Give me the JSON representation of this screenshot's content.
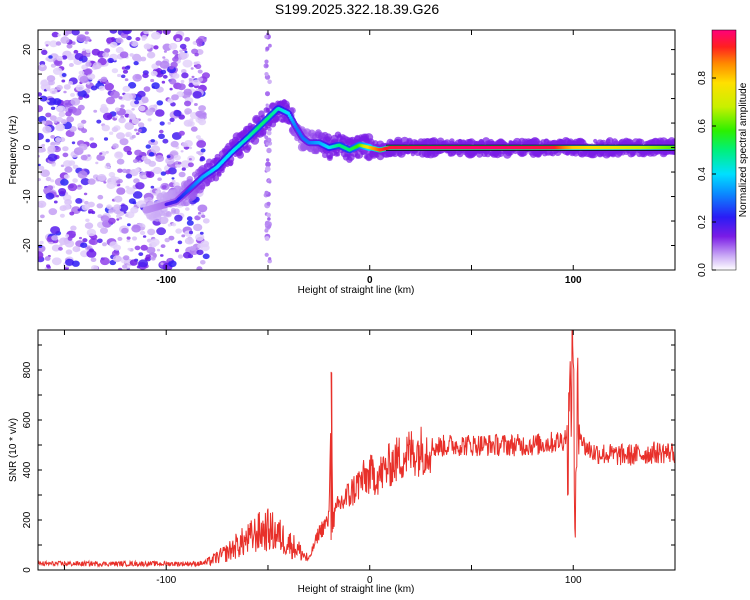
{
  "chart_data": [
    {
      "type": "heatmap",
      "title": "S199.2025.322.18.39.G26",
      "xlabel": "Height of straight line (km)",
      "ylabel": "Frequency (Hz)",
      "xlim": [
        -163,
        150
      ],
      "ylim": [
        -25,
        24
      ],
      "xticks": [
        "-100",
        "0",
        "100"
      ],
      "yticks": [
        "20",
        "10",
        "0",
        "-10",
        "-20"
      ],
      "colorbar": {
        "label": "Normalized spectral amplitude",
        "ticks": [
          "0.0",
          "0.2",
          "0.4",
          "0.6",
          "0.8"
        ],
        "range": [
          0,
          1
        ]
      },
      "noise_region": {
        "x_start": -163,
        "x_end": -80
      },
      "ridge": {
        "x": [
          -163,
          -120,
          -95,
          -82,
          -75,
          -68,
          -60,
          -55,
          -50,
          -45,
          -40,
          -36,
          -33,
          -30,
          -25,
          -20,
          -15,
          -10,
          -5,
          0,
          5,
          10,
          30,
          60,
          90,
          100,
          120,
          150
        ],
        "freq": [
          -18,
          -14,
          -11,
          -6,
          -4,
          -1,
          2,
          4,
          6,
          8,
          7,
          4,
          2,
          1,
          1,
          0,
          0.5,
          -0.5,
          0.5,
          0,
          -0.5,
          0,
          0,
          0,
          0,
          0,
          0,
          0
        ],
        "amplitude": [
          0.1,
          0.1,
          0.2,
          0.35,
          0.4,
          0.4,
          0.45,
          0.5,
          0.5,
          0.45,
          0.4,
          0.3,
          0.3,
          0.3,
          0.35,
          0.4,
          0.5,
          0.5,
          0.6,
          0.8,
          0.9,
          0.95,
          0.98,
          0.99,
          0.95,
          0.8,
          0.75,
          0.6
        ]
      }
    },
    {
      "type": "line",
      "title": "",
      "xlabel": "Height of straight line (km)",
      "ylabel": "SNR (10 * v/v)",
      "xlim": [
        -163,
        150
      ],
      "ylim": [
        0,
        960
      ],
      "xticks": [
        "-100",
        "0",
        "100"
      ],
      "yticks": [
        "800",
        "600",
        "400",
        "200",
        "0"
      ],
      "color": "#e8302a",
      "series": [
        {
          "name": "SNR",
          "x": [
            -163,
            -140,
            -120,
            -100,
            -85,
            -80,
            -75,
            -70,
            -65,
            -60,
            -55,
            -50,
            -45,
            -40,
            -35,
            -30,
            -25,
            -20,
            -19,
            -18,
            -15,
            -10,
            -5,
            0,
            5,
            10,
            15,
            20,
            30,
            40,
            50,
            60,
            70,
            80,
            90,
            95,
            98,
            100,
            101,
            102,
            105,
            110,
            120,
            130,
            140,
            150
          ],
          "y": [
            25,
            25,
            25,
            25,
            25,
            30,
            50,
            70,
            100,
            120,
            150,
            160,
            140,
            110,
            80,
            40,
            150,
            200,
            800,
            200,
            260,
            300,
            350,
            380,
            380,
            420,
            450,
            470,
            490,
            500,
            500,
            500,
            500,
            500,
            510,
            520,
            560,
            950,
            60,
            620,
            500,
            470,
            460,
            460,
            470,
            470
          ]
        }
      ]
    }
  ]
}
